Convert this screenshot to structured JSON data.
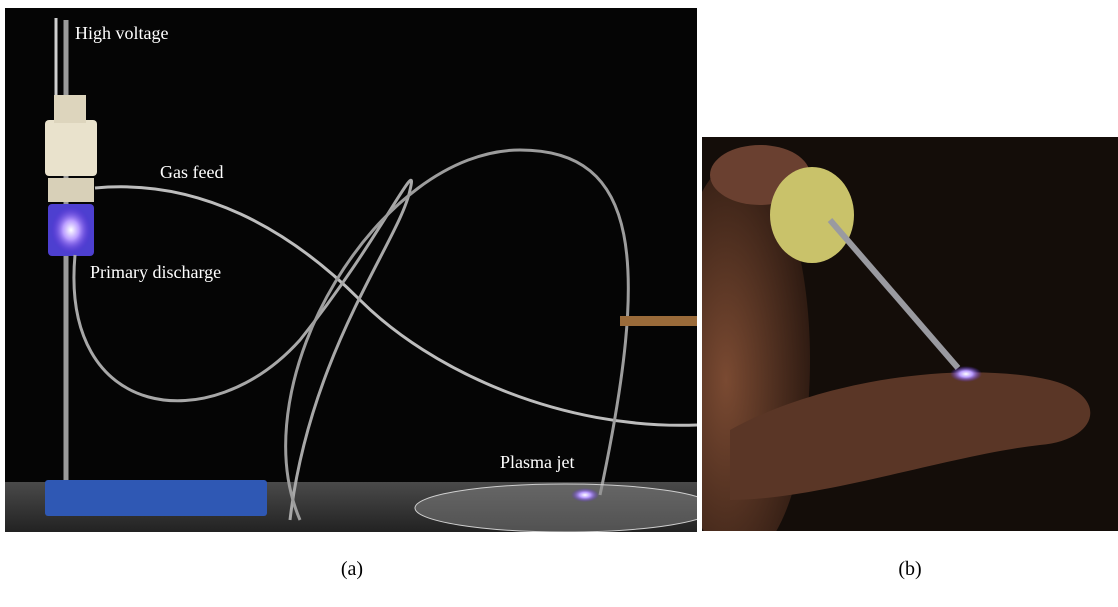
{
  "figure": {
    "panels": [
      {
        "caption": "(a)",
        "labels": [
          "High voltage",
          "Gas feed",
          "Primary discharge",
          "Plasma jet"
        ]
      },
      {
        "caption": "(b)"
      }
    ]
  }
}
